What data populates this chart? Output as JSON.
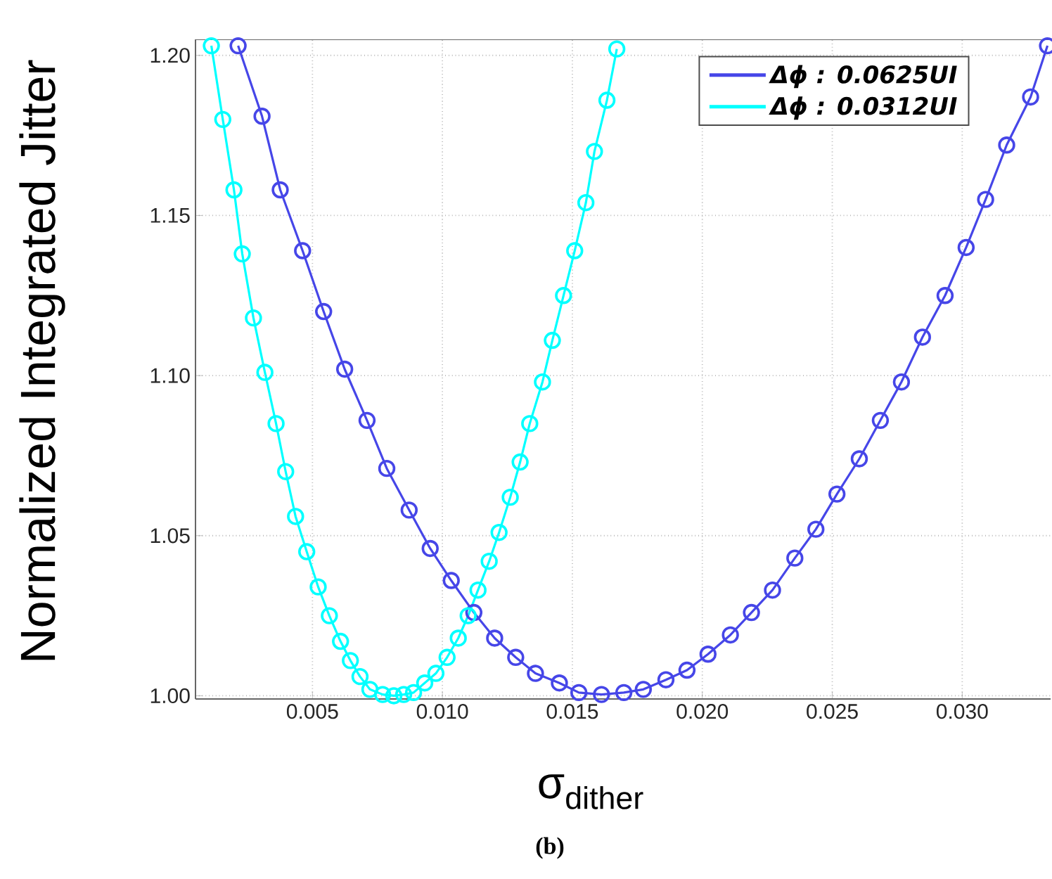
{
  "chart_data": {
    "type": "line",
    "xlabel": "σ$_{dither}$",
    "ylabel": "Normalized Integrated Jitter",
    "annotations": [
      "(b)"
    ],
    "xlim": [
      0.0005,
      0.0334
    ],
    "ylim": [
      0.999,
      1.205
    ],
    "xticks": [
      {
        "value": 0.005,
        "label": "0.005"
      },
      {
        "value": 0.01,
        "label": "0.010"
      },
      {
        "value": 0.015,
        "label": "0.015"
      },
      {
        "value": 0.02,
        "label": "0.020"
      },
      {
        "value": 0.025,
        "label": "0.025"
      },
      {
        "value": 0.03,
        "label": "0.030"
      }
    ],
    "yticks": [
      {
        "value": 1.0,
        "label": "1.00"
      },
      {
        "value": 1.05,
        "label": "1.05"
      },
      {
        "value": 1.1,
        "label": "1.10"
      },
      {
        "value": 1.15,
        "label": "1.15"
      },
      {
        "value": 1.2,
        "label": "1.20"
      }
    ],
    "grid": true,
    "legend": "top right",
    "marker": "circle",
    "line_style": "solid",
    "series": [
      {
        "name": "Δϕ : 0.0625UI",
        "color": "#4646e8",
        "x": [
          0.00214,
          0.00306,
          0.00376,
          0.00462,
          0.00543,
          0.00624,
          0.0071,
          0.00786,
          0.00872,
          0.00953,
          0.01034,
          0.01121,
          0.01201,
          0.01282,
          0.01358,
          0.0145,
          0.01525,
          0.01612,
          0.01698,
          0.01773,
          0.0186,
          0.01941,
          0.02022,
          0.02108,
          0.02189,
          0.0227,
          0.02356,
          0.02437,
          0.02518,
          0.02604,
          0.02685,
          0.02766,
          0.02847,
          0.02934,
          0.03015,
          0.0309,
          0.03171,
          0.03263,
          0.03328
        ],
        "values": [
          1.203,
          1.181,
          1.158,
          1.139,
          1.12,
          1.102,
          1.086,
          1.071,
          1.058,
          1.046,
          1.036,
          1.026,
          1.018,
          1.012,
          1.007,
          1.004,
          1.001,
          1.0004,
          1.001,
          1.002,
          1.005,
          1.008,
          1.013,
          1.019,
          1.026,
          1.033,
          1.043,
          1.052,
          1.063,
          1.074,
          1.086,
          1.098,
          1.112,
          1.125,
          1.14,
          1.155,
          1.172,
          1.187,
          1.203
        ]
      },
      {
        "name": "Δϕ : 0.0312UI",
        "color": "#00ffff",
        "x": [
          0.00111,
          0.00155,
          0.00198,
          0.0023,
          0.00273,
          0.00317,
          0.0036,
          0.00397,
          0.00435,
          0.00478,
          0.00522,
          0.00565,
          0.00608,
          0.00646,
          0.00683,
          0.00721,
          0.0077,
          0.00813,
          0.00851,
          0.00889,
          0.00932,
          0.00975,
          0.01018,
          0.01061,
          0.01099,
          0.01137,
          0.0118,
          0.01218,
          0.01261,
          0.01299,
          0.01336,
          0.01385,
          0.01423,
          0.01466,
          0.01509,
          0.01552,
          0.01585,
          0.01633,
          0.01671
        ],
        "values": [
          1.203,
          1.18,
          1.158,
          1.138,
          1.118,
          1.101,
          1.085,
          1.07,
          1.056,
          1.045,
          1.034,
          1.025,
          1.017,
          1.011,
          1.006,
          1.002,
          1.0004,
          1.0,
          1.0004,
          1.001,
          1.004,
          1.007,
          1.012,
          1.018,
          1.025,
          1.033,
          1.042,
          1.051,
          1.062,
          1.073,
          1.085,
          1.098,
          1.111,
          1.125,
          1.139,
          1.154,
          1.17,
          1.186,
          1.202
        ]
      }
    ]
  }
}
